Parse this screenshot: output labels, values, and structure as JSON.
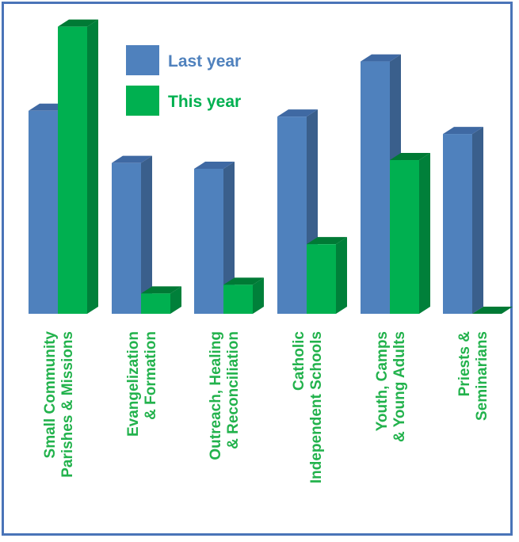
{
  "colors": {
    "last_year": "#4f81bd",
    "last_year_side": "#3a5f8c",
    "last_year_top": "#3f69a3",
    "this_year": "#00b050",
    "this_year_side": "#00803a",
    "this_year_top": "#007a35",
    "label": "#22b24c",
    "legend_last": "#4f81bd",
    "legend_this": "#00b050",
    "frame": "#4a74b8"
  },
  "chart_data": {
    "type": "bar",
    "title": "",
    "xlabel": "",
    "ylabel": "",
    "ylim": [
      0,
      100
    ],
    "grid": false,
    "legend": "top-center",
    "categories": [
      [
        "Small Community",
        "Parishes & Missions"
      ],
      [
        "Evangelization",
        "& Formation"
      ],
      [
        "Outreach, Healing",
        "& Reconciliation"
      ],
      [
        "Catholic",
        "Independent Schools"
      ],
      [
        "Youth, Camps",
        "& Young Adults"
      ],
      [
        "Priests &",
        "Seminarians"
      ]
    ],
    "series": [
      {
        "name": "Last year",
        "values": [
          70,
          52,
          50,
          68,
          87,
          62
        ]
      },
      {
        "name": "This year",
        "values": [
          99,
          7,
          10,
          24,
          53,
          0
        ]
      }
    ]
  }
}
